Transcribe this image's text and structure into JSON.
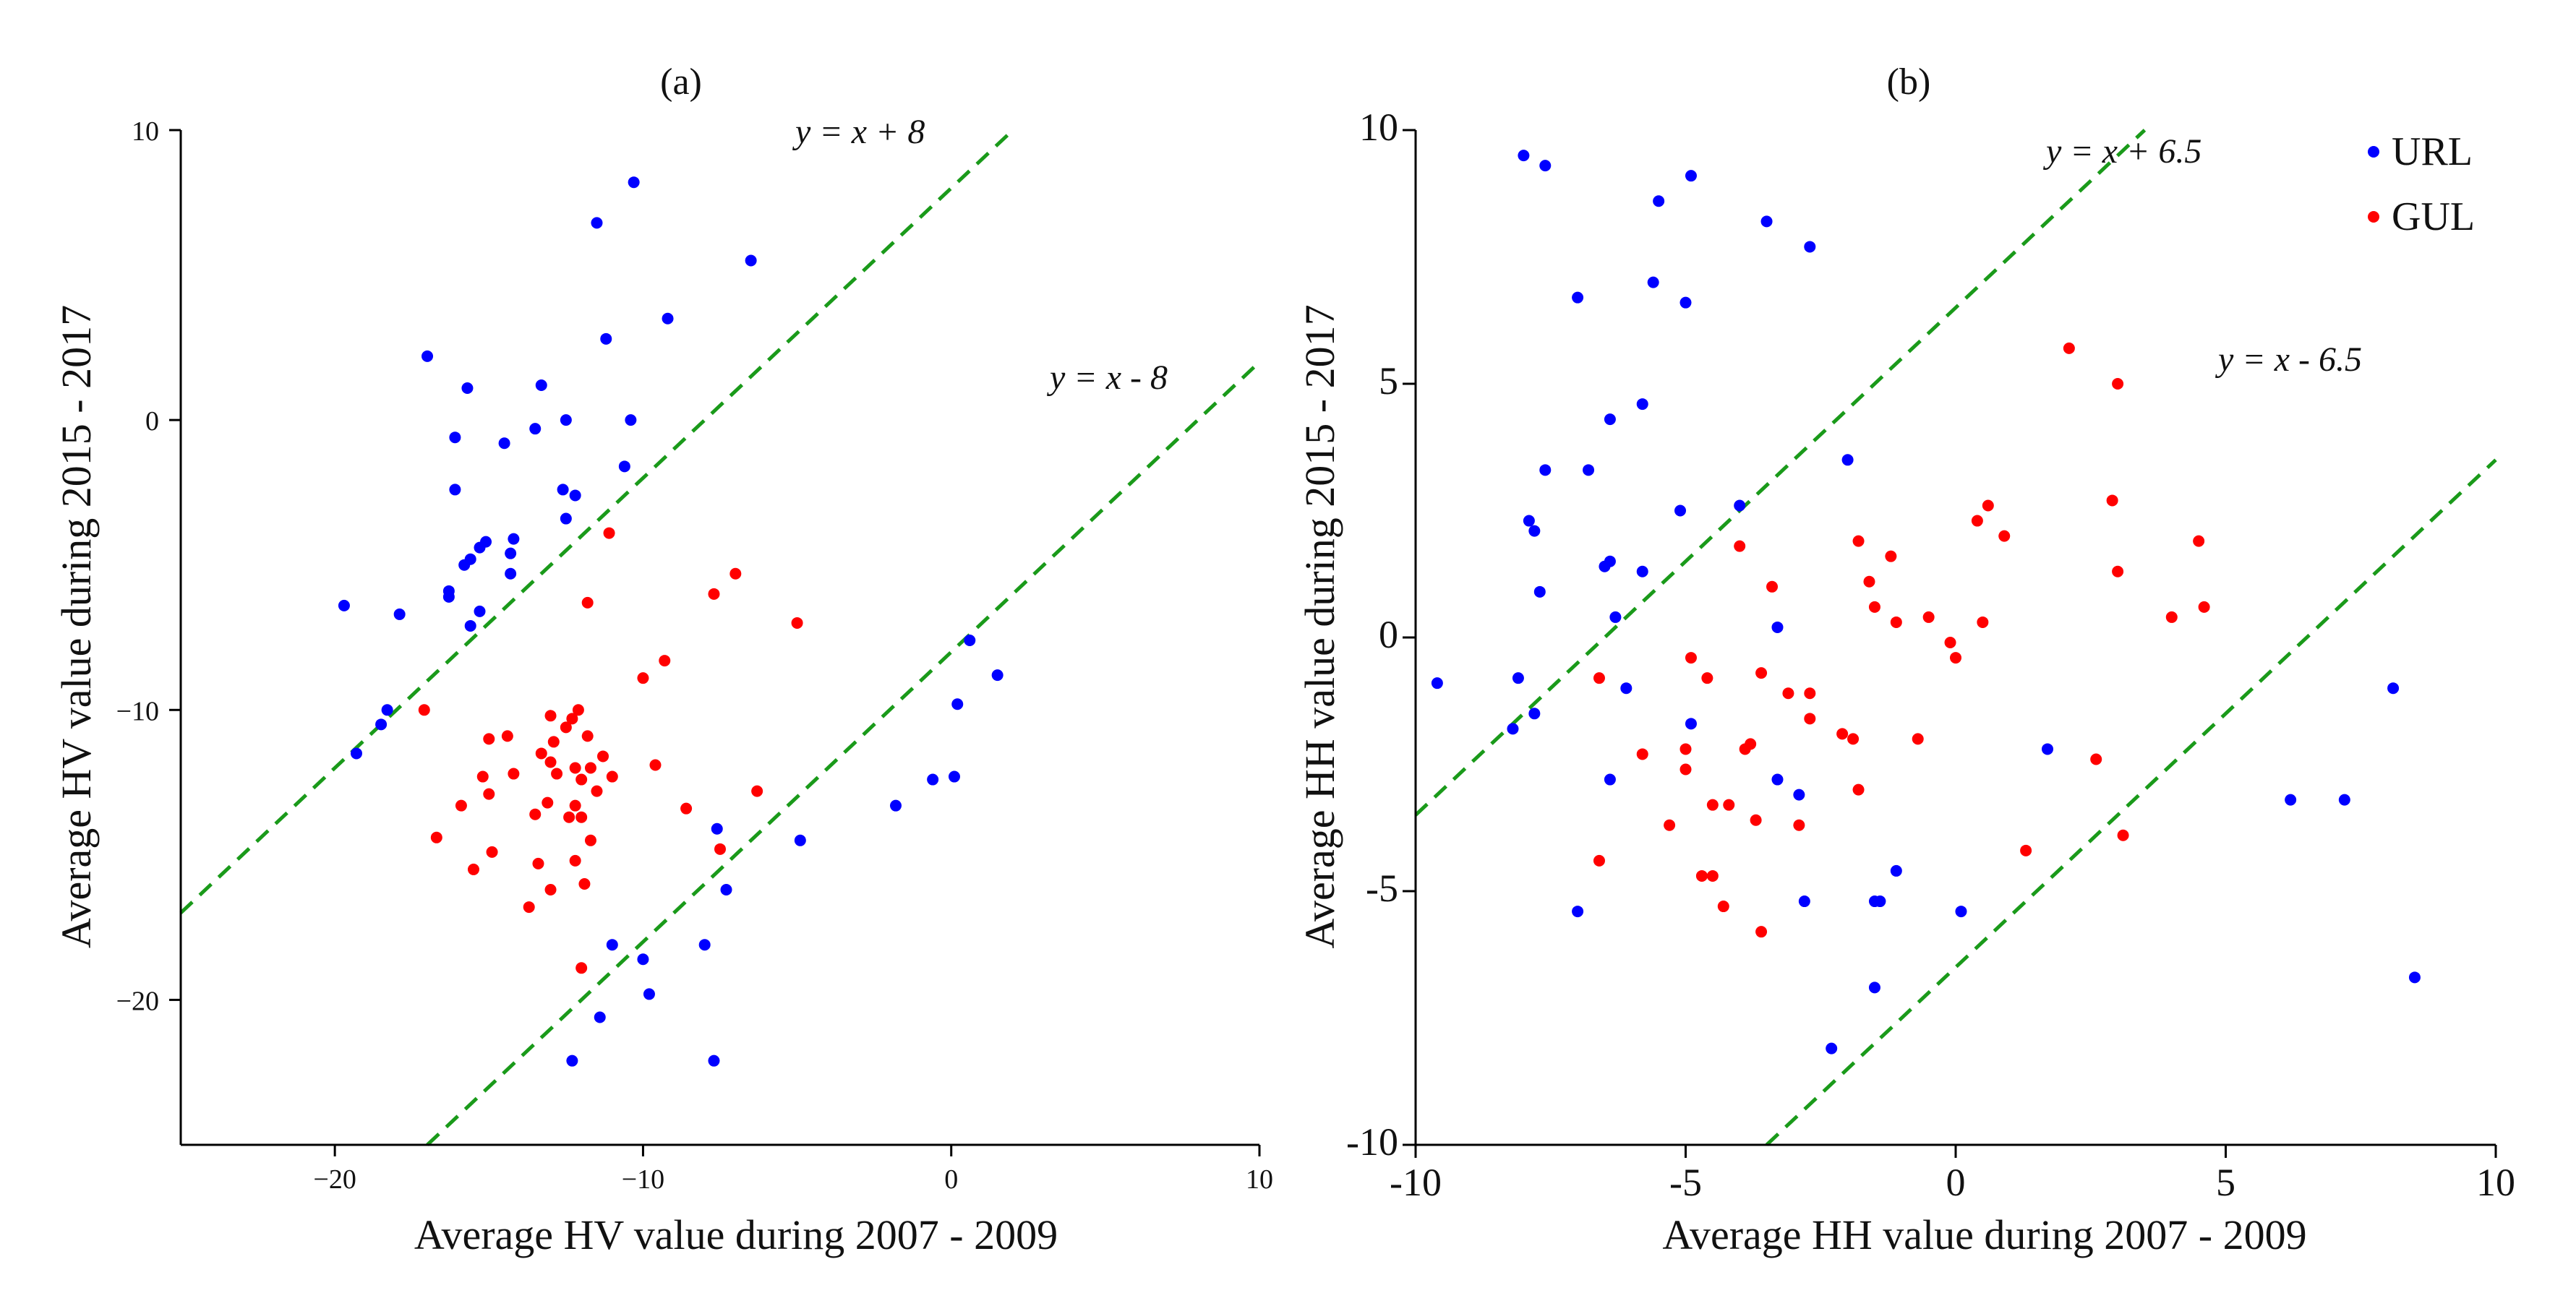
{
  "chart_data": [
    {
      "type": "scatter",
      "title": "(a)",
      "xlabel": "Average HV value  during 2007 - 2009",
      "ylabel": "Average HV value  during 2015 - 2017",
      "xlim": [
        -25,
        10
      ],
      "ylim": [
        -25,
        10
      ],
      "xticks": [
        -20,
        -10,
        0,
        10
      ],
      "xtick_labels": [
        "−20",
        "−10",
        "0",
        "10"
      ],
      "yticks": [
        -20,
        -10,
        0,
        10
      ],
      "ytick_labels": [
        "−20",
        "−10",
        "0",
        "10"
      ],
      "ref_lines": [
        {
          "label": "y = x + 8",
          "intercept": 8
        },
        {
          "label": "y = x - 8",
          "intercept": -8
        }
      ],
      "series": [
        {
          "name": "URL",
          "color": "#0000ff",
          "points": [
            [
              -10.3,
              8.2
            ],
            [
              -11.5,
              6.8
            ],
            [
              -6.5,
              5.5
            ],
            [
              -9.2,
              3.5
            ],
            [
              -11.2,
              2.8
            ],
            [
              -17.0,
              2.2
            ],
            [
              -15.7,
              1.1
            ],
            [
              -13.3,
              1.2
            ],
            [
              -12.5,
              0.0
            ],
            [
              -13.5,
              -0.3
            ],
            [
              -10.4,
              0.0
            ],
            [
              -16.1,
              -0.6
            ],
            [
              -14.5,
              -0.8
            ],
            [
              -10.6,
              -1.6
            ],
            [
              -16.1,
              -2.4
            ],
            [
              -12.6,
              -2.4
            ],
            [
              -12.2,
              -2.6
            ],
            [
              -12.5,
              -3.4
            ],
            [
              -14.2,
              -4.1
            ],
            [
              -15.1,
              -4.2
            ],
            [
              -15.3,
              -4.4
            ],
            [
              -14.3,
              -4.6
            ],
            [
              -15.6,
              -4.8
            ],
            [
              -15.8,
              -5.0
            ],
            [
              -14.3,
              -5.3
            ],
            [
              -16.3,
              -5.9
            ],
            [
              -16.3,
              -6.1
            ],
            [
              -19.7,
              -6.4
            ],
            [
              -15.3,
              -6.6
            ],
            [
              -17.9,
              -6.7
            ],
            [
              -15.6,
              -7.1
            ],
            [
              -18.3,
              -10.0
            ],
            [
              -18.5,
              -10.5
            ],
            [
              -19.3,
              -11.5
            ],
            [
              -7.6,
              -14.1
            ],
            [
              -7.3,
              -16.2
            ],
            [
              -11.0,
              -18.1
            ],
            [
              -10.0,
              -18.6
            ],
            [
              -8.0,
              -18.1
            ],
            [
              -9.8,
              -19.8
            ],
            [
              -11.4,
              -20.6
            ],
            [
              -12.3,
              -22.1
            ],
            [
              -7.7,
              -22.1
            ],
            [
              0.6,
              -7.6
            ],
            [
              1.5,
              -8.8
            ],
            [
              0.2,
              -9.8
            ],
            [
              -0.6,
              -12.4
            ],
            [
              0.1,
              -12.3
            ],
            [
              -1.8,
              -13.3
            ],
            [
              -4.9,
              -14.5
            ]
          ]
        },
        {
          "name": "GUL",
          "color": "#ff0000",
          "points": [
            [
              -11.1,
              -3.9
            ],
            [
              -11.8,
              -6.3
            ],
            [
              -7.0,
              -5.3
            ],
            [
              -7.7,
              -6.0
            ],
            [
              -5.0,
              -7.0
            ],
            [
              -9.3,
              -8.3
            ],
            [
              -10.0,
              -8.9
            ],
            [
              -17.1,
              -10.0
            ],
            [
              -12.3,
              -10.3
            ],
            [
              -13.0,
              -10.2
            ],
            [
              -12.1,
              -10.0
            ],
            [
              -12.5,
              -10.6
            ],
            [
              -11.8,
              -10.9
            ],
            [
              -12.9,
              -11.1
            ],
            [
              -14.4,
              -10.9
            ],
            [
              -15.0,
              -11.0
            ],
            [
              -11.3,
              -11.6
            ],
            [
              -13.3,
              -11.5
            ],
            [
              -13.0,
              -11.8
            ],
            [
              -12.2,
              -12.0
            ],
            [
              -12.8,
              -12.2
            ],
            [
              -11.7,
              -12.0
            ],
            [
              -14.2,
              -12.2
            ],
            [
              -15.2,
              -12.3
            ],
            [
              -12.0,
              -12.4
            ],
            [
              -11.0,
              -12.3
            ],
            [
              -9.6,
              -11.9
            ],
            [
              -11.5,
              -12.8
            ],
            [
              -13.1,
              -13.2
            ],
            [
              -12.2,
              -13.3
            ],
            [
              -13.5,
              -13.6
            ],
            [
              -15.9,
              -13.3
            ],
            [
              -12.4,
              -13.7
            ],
            [
              -12.0,
              -13.7
            ],
            [
              -15.0,
              -12.9
            ],
            [
              -8.6,
              -13.4
            ],
            [
              -6.3,
              -12.8
            ],
            [
              -16.7,
              -14.4
            ],
            [
              -11.7,
              -14.5
            ],
            [
              -14.9,
              -14.9
            ],
            [
              -12.2,
              -15.2
            ],
            [
              -13.4,
              -15.3
            ],
            [
              -15.5,
              -15.5
            ],
            [
              -11.9,
              -16.0
            ],
            [
              -13.0,
              -16.2
            ],
            [
              -13.7,
              -16.8
            ],
            [
              -12.0,
              -18.9
            ],
            [
              -7.5,
              -14.8
            ]
          ]
        }
      ]
    },
    {
      "type": "scatter",
      "title": "(b)",
      "xlabel": "Average HH value  during 2007 - 2009",
      "ylabel": "Average HH value  during 2015 - 2017",
      "xlim": [
        -10,
        10
      ],
      "ylim": [
        -10,
        10
      ],
      "xticks": [
        -10,
        -5,
        0,
        5,
        10
      ],
      "xtick_labels": [
        "-10",
        "-5",
        "0",
        "5",
        "10"
      ],
      "yticks": [
        -10,
        -5,
        0,
        5,
        10
      ],
      "ytick_labels": [
        "-10",
        "-5",
        "0",
        "5",
        "10"
      ],
      "legend": {
        "position": "top-right",
        "entries": [
          "URL",
          "GUL"
        ]
      },
      "ref_lines": [
        {
          "label": "y = x + 6.5",
          "intercept": 6.5
        },
        {
          "label": "y = x - 6.5",
          "intercept": -6.5
        }
      ],
      "series": [
        {
          "name": "URL",
          "color": "#0000ff",
          "points": [
            [
              -8.0,
              9.5
            ],
            [
              -7.6,
              9.3
            ],
            [
              -4.9,
              9.1
            ],
            [
              -5.5,
              8.6
            ],
            [
              -3.5,
              8.2
            ],
            [
              -2.7,
              7.7
            ],
            [
              -7.0,
              6.7
            ],
            [
              -5.6,
              7.0
            ],
            [
              -5.0,
              6.6
            ],
            [
              -5.8,
              4.6
            ],
            [
              -6.4,
              4.3
            ],
            [
              -7.6,
              3.3
            ],
            [
              -6.8,
              3.3
            ],
            [
              -2.0,
              3.5
            ],
            [
              -5.1,
              2.5
            ],
            [
              -4.0,
              2.6
            ],
            [
              -7.9,
              2.3
            ],
            [
              -7.8,
              2.1
            ],
            [
              -6.4,
              1.5
            ],
            [
              -6.5,
              1.4
            ],
            [
              -5.8,
              1.3
            ],
            [
              -7.7,
              0.9
            ],
            [
              -6.3,
              0.4
            ],
            [
              -3.3,
              0.2
            ],
            [
              -9.6,
              -0.9
            ],
            [
              -8.1,
              -0.8
            ],
            [
              -6.1,
              -1.0
            ],
            [
              -8.2,
              -1.8
            ],
            [
              -7.8,
              -1.5
            ],
            [
              -4.9,
              -1.7
            ],
            [
              -6.4,
              -2.8
            ],
            [
              -3.3,
              -2.8
            ],
            [
              -2.9,
              -3.1
            ],
            [
              -7.0,
              -5.4
            ],
            [
              -2.8,
              -5.2
            ],
            [
              -1.5,
              -5.2
            ],
            [
              -1.4,
              -5.2
            ],
            [
              -1.1,
              -4.6
            ],
            [
              0.1,
              -5.4
            ],
            [
              -1.5,
              -6.9
            ],
            [
              -2.3,
              -8.1
            ],
            [
              1.7,
              -2.2
            ],
            [
              6.2,
              -3.2
            ],
            [
              7.2,
              -3.2
            ],
            [
              8.1,
              -1.0
            ],
            [
              8.5,
              -6.7
            ]
          ]
        },
        {
          "name": "GUL",
          "color": "#ff0000",
          "points": [
            [
              2.1,
              5.7
            ],
            [
              3.0,
              5.0
            ],
            [
              2.9,
              2.7
            ],
            [
              0.6,
              2.6
            ],
            [
              0.4,
              2.3
            ],
            [
              0.9,
              2.0
            ],
            [
              -1.8,
              1.9
            ],
            [
              -4.0,
              1.8
            ],
            [
              -1.2,
              1.6
            ],
            [
              3.0,
              1.3
            ],
            [
              4.5,
              1.9
            ],
            [
              -1.6,
              1.1
            ],
            [
              -3.4,
              1.0
            ],
            [
              -1.5,
              0.6
            ],
            [
              -0.5,
              0.4
            ],
            [
              4.0,
              0.4
            ],
            [
              4.6,
              0.6
            ],
            [
              -1.1,
              0.3
            ],
            [
              0.5,
              0.3
            ],
            [
              -0.1,
              -0.1
            ],
            [
              0.0,
              -0.4
            ],
            [
              -4.9,
              -0.4
            ],
            [
              -6.6,
              -0.8
            ],
            [
              -4.6,
              -0.8
            ],
            [
              -3.6,
              -0.7
            ],
            [
              -3.1,
              -1.1
            ],
            [
              -2.7,
              -1.1
            ],
            [
              -2.7,
              -1.6
            ],
            [
              -2.1,
              -1.9
            ],
            [
              -1.9,
              -2.0
            ],
            [
              -0.7,
              -2.0
            ],
            [
              -3.8,
              -2.1
            ],
            [
              -3.9,
              -2.2
            ],
            [
              -5.0,
              -2.2
            ],
            [
              -5.0,
              -2.6
            ],
            [
              -5.8,
              -2.3
            ],
            [
              -4.5,
              -3.3
            ],
            [
              -4.2,
              -3.3
            ],
            [
              -1.8,
              -3.0
            ],
            [
              -5.3,
              -3.7
            ],
            [
              -3.7,
              -3.6
            ],
            [
              -2.9,
              -3.7
            ],
            [
              2.6,
              -2.4
            ],
            [
              3.1,
              -3.9
            ],
            [
              1.3,
              -4.2
            ],
            [
              -6.6,
              -4.4
            ],
            [
              -4.7,
              -4.7
            ],
            [
              -4.5,
              -4.7
            ],
            [
              -4.3,
              -5.3
            ],
            [
              -3.6,
              -5.8
            ]
          ]
        }
      ]
    }
  ]
}
